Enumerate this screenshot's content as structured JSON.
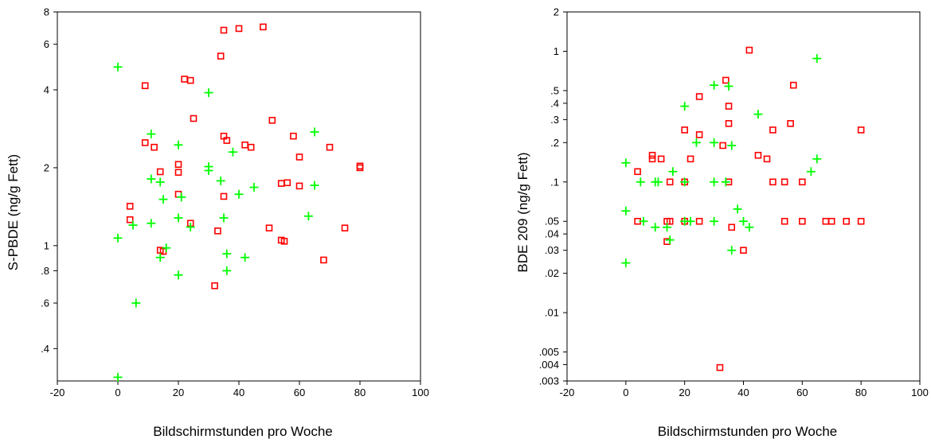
{
  "charts": [
    {
      "xlabel": "Bildschirmstunden pro Woche",
      "ylabel": "S-PBDE (ng/g Fett)",
      "x_ticks": [
        "-20",
        "0",
        "20",
        "40",
        "60",
        "80",
        "100"
      ],
      "y_ticks": [
        "8",
        "6",
        "4",
        "2",
        "1",
        ".8",
        ".6",
        ".4"
      ]
    },
    {
      "xlabel": "Bildschirmstunden pro Woche",
      "ylabel": "BDE 209 (ng/g Fett)",
      "x_ticks": [
        "-20",
        "0",
        "20",
        "40",
        "60",
        "80",
        "100"
      ],
      "y_ticks": [
        "2",
        "1",
        ".5",
        ".4",
        ".3",
        ".2",
        ".1",
        ".05",
        ".04",
        ".03",
        ".02",
        ".01",
        ".005",
        ".004",
        ".003"
      ]
    }
  ],
  "chart_data": [
    {
      "type": "scatter",
      "title": "",
      "xlabel": "Bildschirmstunden pro Woche",
      "ylabel": "S-PBDE (ng/g Fett)",
      "xlim": [
        -20,
        100
      ],
      "ylim": [
        0.3,
        8
      ],
      "y_scale": "log",
      "x_ticks": [
        -20,
        0,
        20,
        40,
        60,
        80,
        100
      ],
      "y_ticks": [
        8,
        6,
        4,
        2,
        1,
        0.8,
        0.6,
        0.4
      ],
      "grid": false,
      "legend": "none",
      "series": [
        {
          "marker": "square",
          "color": "#ff0000",
          "points": [
            [
              9,
              4.15
            ],
            [
              22,
              4.4
            ],
            [
              24,
              4.35
            ],
            [
              34,
              5.4
            ],
            [
              35,
              6.8
            ],
            [
              40,
              6.9
            ],
            [
              48,
              7.0
            ],
            [
              25,
              3.1
            ],
            [
              9,
              2.5
            ],
            [
              12,
              2.4
            ],
            [
              35,
              2.65
            ],
            [
              36,
              2.55
            ],
            [
              42,
              2.45
            ],
            [
              44,
              2.4
            ],
            [
              51,
              3.05
            ],
            [
              58,
              2.65
            ],
            [
              60,
              2.2
            ],
            [
              70,
              2.4
            ],
            [
              80,
              2.0
            ],
            [
              80,
              2.03
            ],
            [
              14,
              1.93
            ],
            [
              20,
              2.06
            ],
            [
              20,
              1.92
            ],
            [
              20,
              1.58
            ],
            [
              4,
              1.42
            ],
            [
              4,
              1.26
            ],
            [
              24,
              1.22
            ],
            [
              33,
              1.14
            ],
            [
              35,
              1.55
            ],
            [
              50,
              1.17
            ],
            [
              54,
              1.05
            ],
            [
              55,
              1.04
            ],
            [
              54,
              1.74
            ],
            [
              56,
              1.75
            ],
            [
              60,
              1.7
            ],
            [
              75,
              1.17
            ],
            [
              68,
              0.88
            ],
            [
              14,
              0.96
            ],
            [
              15,
              0.95
            ],
            [
              32,
              0.7
            ]
          ]
        },
        {
          "marker": "plus",
          "color": "#00ff00",
          "points": [
            [
              0,
              4.9
            ],
            [
              30,
              3.9
            ],
            [
              11,
              2.7
            ],
            [
              20,
              2.45
            ],
            [
              38,
              2.3
            ],
            [
              65,
              2.75
            ],
            [
              30,
              2.02
            ],
            [
              30,
              1.95
            ],
            [
              11,
              1.81
            ],
            [
              14,
              1.76
            ],
            [
              34,
              1.78
            ],
            [
              45,
              1.68
            ],
            [
              65,
              1.71
            ],
            [
              21,
              1.54
            ],
            [
              15,
              1.51
            ],
            [
              40,
              1.58
            ],
            [
              35,
              1.28
            ],
            [
              20,
              1.28
            ],
            [
              63,
              1.3
            ],
            [
              11,
              1.22
            ],
            [
              5,
              1.2
            ],
            [
              24,
              1.18
            ],
            [
              0,
              1.07
            ],
            [
              16,
              0.98
            ],
            [
              14,
              0.9
            ],
            [
              36,
              0.93
            ],
            [
              42,
              0.9
            ],
            [
              36,
              0.8
            ],
            [
              20,
              0.77
            ],
            [
              6,
              0.6
            ],
            [
              0,
              0.31
            ]
          ]
        }
      ]
    },
    {
      "type": "scatter",
      "title": "",
      "xlabel": "Bildschirmstunden pro Woche",
      "ylabel": "BDE 209 (ng/g Fett)",
      "xlim": [
        -20,
        100
      ],
      "ylim": [
        0.003,
        2
      ],
      "y_scale": "log",
      "x_ticks": [
        -20,
        0,
        20,
        40,
        60,
        80,
        100
      ],
      "y_ticks": [
        2,
        1,
        0.5,
        0.4,
        0.3,
        0.2,
        0.1,
        0.05,
        0.04,
        0.03,
        0.02,
        0.01,
        0.005,
        0.004,
        0.003
      ],
      "grid": false,
      "legend": "none",
      "series": [
        {
          "marker": "square",
          "color": "#ff0000",
          "points": [
            [
              42,
              1.02
            ],
            [
              34,
              0.6
            ],
            [
              57,
              0.55
            ],
            [
              25,
              0.45
            ],
            [
              35,
              0.38
            ],
            [
              35,
              0.28
            ],
            [
              56,
              0.28
            ],
            [
              20,
              0.25
            ],
            [
              50,
              0.25
            ],
            [
              80,
              0.25
            ],
            [
              25,
              0.23
            ],
            [
              33,
              0.19
            ],
            [
              9,
              0.16
            ],
            [
              9,
              0.15
            ],
            [
              12,
              0.15
            ],
            [
              22,
              0.15
            ],
            [
              45,
              0.16
            ],
            [
              48,
              0.15
            ],
            [
              4,
              0.12
            ],
            [
              15,
              0.1
            ],
            [
              20,
              0.1
            ],
            [
              35,
              0.1
            ],
            [
              50,
              0.1
            ],
            [
              54,
              0.1
            ],
            [
              60,
              0.1
            ],
            [
              4,
              0.05
            ],
            [
              14,
              0.05
            ],
            [
              15,
              0.05
            ],
            [
              20,
              0.05
            ],
            [
              25,
              0.05
            ],
            [
              54,
              0.05
            ],
            [
              60,
              0.05
            ],
            [
              68,
              0.05
            ],
            [
              70,
              0.05
            ],
            [
              75,
              0.05
            ],
            [
              80,
              0.05
            ],
            [
              36,
              0.045
            ],
            [
              14,
              0.035
            ],
            [
              40,
              0.03
            ],
            [
              32,
              0.0038
            ]
          ]
        },
        {
          "marker": "plus",
          "color": "#00ff00",
          "points": [
            [
              65,
              0.88
            ],
            [
              30,
              0.55
            ],
            [
              35,
              0.54
            ],
            [
              20,
              0.38
            ],
            [
              45,
              0.33
            ],
            [
              24,
              0.2
            ],
            [
              30,
              0.2
            ],
            [
              36,
              0.19
            ],
            [
              0,
              0.14
            ],
            [
              65,
              0.15
            ],
            [
              16,
              0.12
            ],
            [
              63,
              0.12
            ],
            [
              5,
              0.1
            ],
            [
              10,
              0.1
            ],
            [
              11,
              0.1
            ],
            [
              20,
              0.1
            ],
            [
              30,
              0.1
            ],
            [
              34,
              0.1
            ],
            [
              38,
              0.062
            ],
            [
              0,
              0.06
            ],
            [
              6,
              0.05
            ],
            [
              20,
              0.05
            ],
            [
              22,
              0.05
            ],
            [
              30,
              0.05
            ],
            [
              40,
              0.05
            ],
            [
              10,
              0.045
            ],
            [
              14,
              0.045
            ],
            [
              42,
              0.045
            ],
            [
              15,
              0.036
            ],
            [
              36,
              0.03
            ],
            [
              0,
              0.024
            ]
          ]
        }
      ]
    }
  ]
}
